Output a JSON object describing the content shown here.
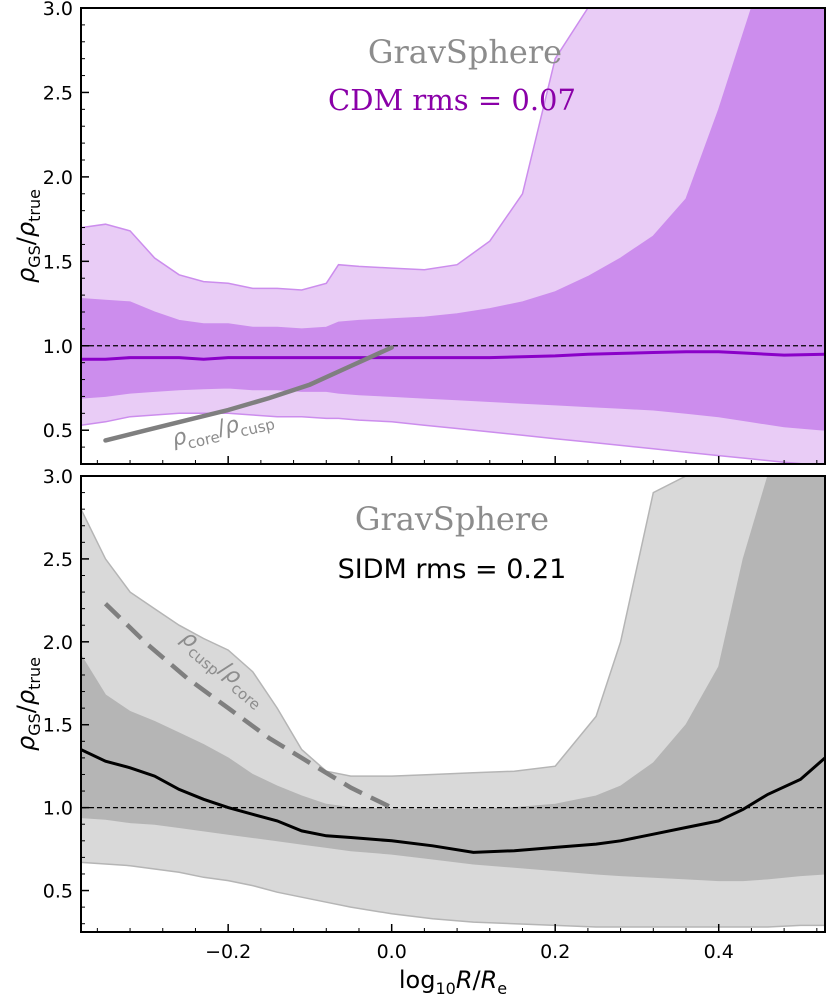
{
  "chart_data": [
    {
      "type": "area",
      "panel": "top",
      "title": "GravSphere",
      "subtitle": "CDM rms = 0.07",
      "ylabel": "ρGS/ρtrue",
      "ylabel_main": "ρ",
      "ylabel_sub": "GS",
      "ylabel_den": "ρ",
      "ylabel_den_sub": "true",
      "xlim": [
        -0.38,
        0.53
      ],
      "ylim": [
        0.3,
        3.0
      ],
      "yticks": [
        0.5,
        1.0,
        1.5,
        2.0,
        2.5,
        3.0
      ],
      "ytick_labels": [
        "0.5",
        "1.0",
        "1.5",
        "2.0",
        "2.5",
        "3.0"
      ],
      "reference_line_y": 1.0,
      "colors": {
        "outer": "#e9ccf6",
        "inner": "#cc8ded",
        "median": "#8a00c8",
        "title": "#8c8c8c",
        "subtitle": "#8a00a8",
        "curve": "#7f7f7f"
      },
      "x": [
        -0.38,
        -0.35,
        -0.32,
        -0.29,
        -0.26,
        -0.23,
        -0.2,
        -0.17,
        -0.14,
        -0.11,
        -0.08,
        -0.065,
        -0.04,
        0.0,
        0.04,
        0.08,
        0.12,
        0.16,
        0.2,
        0.24,
        0.28,
        0.32,
        0.36,
        0.4,
        0.44,
        0.48,
        0.53
      ],
      "outer_upper": [
        1.7,
        1.72,
        1.68,
        1.52,
        1.42,
        1.38,
        1.37,
        1.34,
        1.34,
        1.33,
        1.37,
        1.48,
        1.47,
        1.46,
        1.45,
        1.48,
        1.62,
        1.9,
        2.7,
        3.0,
        3.0,
        3.0,
        3.0,
        3.0,
        3.0,
        3.0,
        3.0
      ],
      "inner_upper": [
        1.28,
        1.27,
        1.26,
        1.2,
        1.15,
        1.13,
        1.13,
        1.11,
        1.11,
        1.1,
        1.11,
        1.14,
        1.15,
        1.16,
        1.17,
        1.19,
        1.22,
        1.26,
        1.32,
        1.41,
        1.52,
        1.65,
        1.87,
        2.4,
        3.0,
        3.0,
        3.0
      ],
      "median": [
        0.92,
        0.92,
        0.93,
        0.93,
        0.93,
        0.92,
        0.93,
        0.93,
        0.93,
        0.93,
        0.93,
        0.93,
        0.93,
        0.93,
        0.93,
        0.93,
        0.93,
        0.935,
        0.94,
        0.95,
        0.955,
        0.96,
        0.965,
        0.965,
        0.955,
        0.945,
        0.95
      ],
      "inner_lower": [
        0.69,
        0.7,
        0.72,
        0.73,
        0.74,
        0.745,
        0.75,
        0.74,
        0.74,
        0.73,
        0.73,
        0.72,
        0.71,
        0.7,
        0.69,
        0.68,
        0.67,
        0.66,
        0.65,
        0.64,
        0.63,
        0.62,
        0.6,
        0.58,
        0.55,
        0.52,
        0.5
      ],
      "outer_lower": [
        0.53,
        0.55,
        0.58,
        0.59,
        0.6,
        0.6,
        0.6,
        0.59,
        0.58,
        0.58,
        0.57,
        0.57,
        0.56,
        0.55,
        0.53,
        0.51,
        0.49,
        0.47,
        0.45,
        0.43,
        0.41,
        0.39,
        0.37,
        0.35,
        0.33,
        0.31,
        0.29
      ],
      "curve": {
        "label_main": "ρ",
        "label_sub": "core",
        "label_den": "ρ",
        "label_den_sub": "cusp",
        "style": "solid",
        "x": [
          -0.35,
          -0.3,
          -0.25,
          -0.2,
          -0.15,
          -0.1,
          -0.05,
          0.0
        ],
        "y": [
          0.44,
          0.5,
          0.56,
          0.62,
          0.69,
          0.77,
          0.88,
          0.99
        ]
      }
    },
    {
      "type": "area",
      "panel": "bottom",
      "title": "GravSphere",
      "subtitle": "SIDM rms = 0.21",
      "xlabel": "log10R/Re",
      "xlabel_main": "log",
      "xlabel_sub": "10",
      "xlabel_var": "R",
      "xlabel_den": "R",
      "xlabel_den_sub": "e",
      "ylabel": "ρGS/ρtrue",
      "ylabel_main": "ρ",
      "ylabel_sub": "GS",
      "ylabel_den": "ρ",
      "ylabel_den_sub": "true",
      "xlim": [
        -0.38,
        0.53
      ],
      "ylim": [
        0.25,
        3.0
      ],
      "xticks": [
        -0.2,
        0.0,
        0.2,
        0.4
      ],
      "xtick_labels": [
        "−0.2",
        "0.0",
        "0.2",
        "0.4"
      ],
      "yticks": [
        0.5,
        1.0,
        1.5,
        2.0,
        2.5,
        3.0
      ],
      "ytick_labels": [
        "0.5",
        "1.0",
        "1.5",
        "2.0",
        "2.5",
        "3.0"
      ],
      "reference_line_y": 1.0,
      "colors": {
        "outer": "#d9d9d9",
        "inner": "#b5b5b5",
        "median": "#000000",
        "title": "#8c8c8c",
        "subtitle": "#000000",
        "curve": "#7f7f7f"
      },
      "x": [
        -0.38,
        -0.35,
        -0.32,
        -0.29,
        -0.26,
        -0.23,
        -0.2,
        -0.17,
        -0.14,
        -0.11,
        -0.08,
        -0.05,
        0.0,
        0.05,
        0.1,
        0.15,
        0.2,
        0.25,
        0.28,
        0.32,
        0.36,
        0.4,
        0.43,
        0.46,
        0.5,
        0.53
      ],
      "outer_upper": [
        2.8,
        2.5,
        2.3,
        2.2,
        2.1,
        2.02,
        1.95,
        1.82,
        1.6,
        1.35,
        1.22,
        1.19,
        1.19,
        1.2,
        1.21,
        1.22,
        1.25,
        1.55,
        2.0,
        2.9,
        3.0,
        3.0,
        3.0,
        3.0,
        3.0,
        3.0
      ],
      "inner_upper": [
        1.92,
        1.68,
        1.58,
        1.52,
        1.45,
        1.38,
        1.3,
        1.2,
        1.13,
        1.07,
        1.02,
        1.0,
        0.99,
        0.99,
        0.99,
        1.0,
        1.02,
        1.07,
        1.13,
        1.27,
        1.5,
        1.85,
        2.5,
        3.0,
        3.0,
        3.0
      ],
      "median": [
        1.35,
        1.28,
        1.24,
        1.19,
        1.11,
        1.05,
        1.0,
        0.96,
        0.92,
        0.86,
        0.83,
        0.82,
        0.8,
        0.77,
        0.73,
        0.74,
        0.76,
        0.78,
        0.8,
        0.84,
        0.88,
        0.92,
        0.99,
        1.08,
        1.17,
        1.3
      ],
      "inner_lower": [
        0.94,
        0.93,
        0.91,
        0.9,
        0.88,
        0.86,
        0.84,
        0.82,
        0.8,
        0.78,
        0.76,
        0.74,
        0.72,
        0.69,
        0.66,
        0.64,
        0.62,
        0.6,
        0.59,
        0.58,
        0.57,
        0.56,
        0.56,
        0.57,
        0.59,
        0.6
      ],
      "outer_lower": [
        0.67,
        0.66,
        0.65,
        0.63,
        0.61,
        0.58,
        0.56,
        0.53,
        0.49,
        0.46,
        0.43,
        0.4,
        0.36,
        0.33,
        0.31,
        0.3,
        0.29,
        0.28,
        0.28,
        0.28,
        0.28,
        0.28,
        0.28,
        0.28,
        0.29,
        0.29
      ],
      "curve": {
        "label_main": "ρ",
        "label_sub": "cusp",
        "label_den": "ρ",
        "label_den_sub": "core",
        "style": "dashed",
        "x": [
          -0.35,
          -0.3,
          -0.25,
          -0.2,
          -0.15,
          -0.1,
          -0.05,
          0.0
        ],
        "y": [
          2.23,
          1.99,
          1.78,
          1.6,
          1.42,
          1.27,
          1.12,
          1.0
        ]
      }
    }
  ]
}
